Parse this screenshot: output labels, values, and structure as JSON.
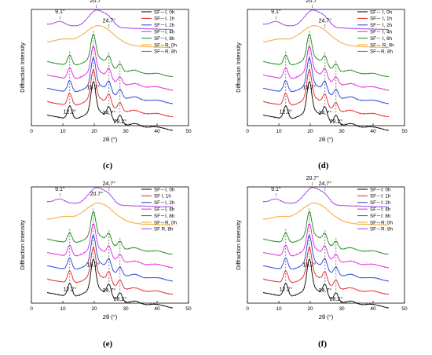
{
  "chart_data": [
    {
      "type": "line",
      "caption": "(c)",
      "xlabel": "2θ (°)",
      "ylabel": "Diffraction Intensity",
      "xlim": [
        0,
        50
      ],
      "xticks": [
        0,
        10,
        20,
        30,
        40,
        50
      ],
      "legend_position": "top-right",
      "legend": [
        "SF－Ⅰ, 0h",
        "SF－Ⅰ, 1h",
        "SF－Ⅰ, 2h",
        "SF－Ⅰ, 4h",
        "SF－Ⅰ, 8h",
        "SF－R, 0h",
        "SF－R, 8h"
      ],
      "colors": [
        "#000000",
        "#e8211f",
        "#1f3ed6",
        "#e21fd8",
        "#138a13",
        "#f5a023",
        "#9b3fe0"
      ],
      "annotations": [
        {
          "text": "9.1°",
          "x": 9.1,
          "curve": 6,
          "pos": "above"
        },
        {
          "text": "20.7°",
          "x": 20.7,
          "curve": 6,
          "pos": "above"
        },
        {
          "text": "24.7°",
          "x": 24.7,
          "curve": 5,
          "pos": "above"
        },
        {
          "text": "12.2°",
          "x": 12.2,
          "curve": 0,
          "pos": "below"
        },
        {
          "text": "19.7°",
          "x": 19.7,
          "curve": 0,
          "pos": "below"
        },
        {
          "text": "24.7°",
          "x": 24.7,
          "curve": 0,
          "pos": "below"
        },
        {
          "text": "28.2°",
          "x": 28.2,
          "curve": 0,
          "pos": "below"
        }
      ]
    },
    {
      "type": "line",
      "caption": "(d)",
      "xlabel": "2θ (°)",
      "ylabel": "Diffraction Intensity",
      "xlim": [
        0,
        50
      ],
      "xticks": [
        0,
        10,
        20,
        30,
        40,
        50
      ],
      "legend_position": "top-right",
      "legend": [
        "SF－ Ⅰ, 0h",
        "SF－ Ⅰ, 1h",
        "SF－ Ⅰ, 2h",
        "SF－ Ⅰ, 4h",
        "SF－ Ⅰ, 8h",
        "SF－ R, 0h",
        "SF－R, 8h"
      ],
      "colors": [
        "#000000",
        "#e8211f",
        "#1f3ed6",
        "#e21fd8",
        "#138a13",
        "#f5a023",
        "#9b3fe0"
      ],
      "annotations": [
        {
          "text": "9.1°",
          "x": 9.1,
          "curve": 6,
          "pos": "above"
        },
        {
          "text": "20.7°",
          "x": 20.7,
          "curve": 6,
          "pos": "above"
        },
        {
          "text": "24.7°",
          "x": 24.7,
          "curve": 5,
          "pos": "above"
        },
        {
          "text": "12.2°",
          "x": 12.2,
          "curve": 0,
          "pos": "below"
        },
        {
          "text": "19.7°",
          "x": 19.7,
          "curve": 0,
          "pos": "below"
        },
        {
          "text": "24.7°",
          "x": 24.7,
          "curve": 0,
          "pos": "below"
        },
        {
          "text": "28.2°",
          "x": 28.2,
          "curve": 0,
          "pos": "below"
        }
      ]
    },
    {
      "type": "line",
      "caption": "(e)",
      "xlabel": "2θ (°)",
      "ylabel": "Diffraction Intensity",
      "xlim": [
        0,
        50
      ],
      "xticks": [
        0,
        10,
        20,
        30,
        40,
        50
      ],
      "legend_position": "top-right",
      "legend": [
        "SF－Ⅰ, 0h",
        "SF   Ⅰ, 1h",
        "SF－Ⅰ, 2h",
        "SF－Ⅰ, 4h",
        "SF－Ⅰ, 8h",
        "SF－R, 0h",
        "SF  R, 8h"
      ],
      "colors": [
        "#000000",
        "#e8211f",
        "#1f3ed6",
        "#e21fd8",
        "#138a13",
        "#f5a023",
        "#9b3fe0"
      ],
      "annotations": [
        {
          "text": "9.1°",
          "x": 9.1,
          "curve": 6,
          "pos": "above"
        },
        {
          "text": "20.7°",
          "x": 20.7,
          "curve": 6,
          "pos": "below"
        },
        {
          "text": "24.7°",
          "x": 24.7,
          "curve": 6,
          "pos": "above"
        },
        {
          "text": "12.2°",
          "x": 12.2,
          "curve": 0,
          "pos": "below"
        },
        {
          "text": "19.7°",
          "x": 19.7,
          "curve": 0,
          "pos": "below"
        },
        {
          "text": "24.7°",
          "x": 24.7,
          "curve": 0,
          "pos": "below"
        },
        {
          "text": "28.2°",
          "x": 28.2,
          "curve": 0,
          "pos": "below"
        }
      ]
    },
    {
      "type": "line",
      "caption": "(f)",
      "xlabel": "2θ (°)",
      "ylabel": "Diffraction Intensity",
      "xlim": [
        0,
        50
      ],
      "xticks": [
        0,
        10,
        20,
        30,
        40,
        50
      ],
      "legend_position": "top-right",
      "legend": [
        "SF－Ⅰ: 0h",
        "SF－Ⅰ: 1h",
        "SF－Ⅰ: 2h",
        "SF－Ⅰ: 4h",
        "SF－Ⅰ: 8h",
        "SF－R: 0h",
        "SF－R: 8h"
      ],
      "colors": [
        "#000000",
        "#e8211f",
        "#1f3ed6",
        "#e21fd8",
        "#138a13",
        "#f5a023",
        "#9b3fe0"
      ],
      "annotations": [
        {
          "text": "9.1°",
          "x": 9.1,
          "curve": 6,
          "pos": "above"
        },
        {
          "text": "20.7°",
          "x": 20.7,
          "curve": 6,
          "pos": "above"
        },
        {
          "text": "24.7°",
          "x": 24.7,
          "curve": 6,
          "pos": "above"
        },
        {
          "text": "12.2°",
          "x": 12.2,
          "curve": 0,
          "pos": "below"
        },
        {
          "text": "19.7°",
          "x": 19.7,
          "curve": 0,
          "pos": "below"
        },
        {
          "text": "24.7°",
          "x": 24.7,
          "curve": 0,
          "pos": "below"
        },
        {
          "text": "28.2°",
          "x": 28.2,
          "curve": 0,
          "pos": "below"
        }
      ]
    }
  ]
}
